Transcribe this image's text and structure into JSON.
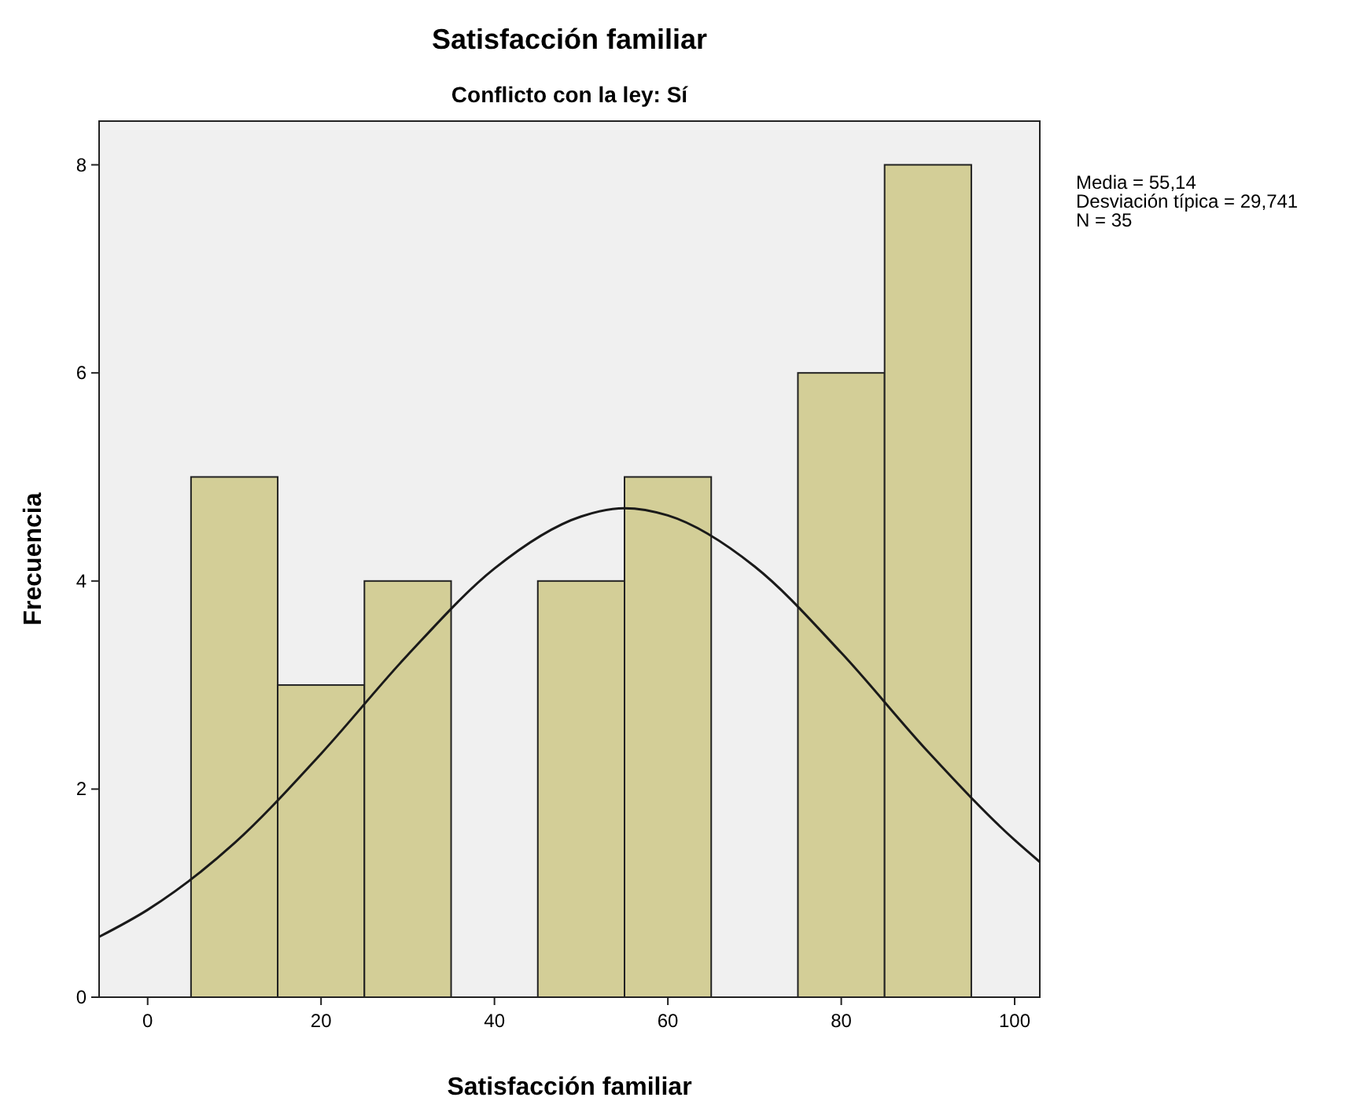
{
  "chart_data": {
    "type": "histogram",
    "title": "Satisfacción familiar",
    "subtitle": "Conflicto con la ley: Sí",
    "xlabel": "Satisfacción familiar",
    "ylabel": "Frecuencia",
    "bins": [
      5,
      15,
      25,
      35,
      45,
      55,
      65,
      75,
      85,
      95
    ],
    "values": [
      5,
      3,
      4,
      0,
      4,
      5,
      0,
      6,
      8
    ],
    "color": "#d3ce97",
    "series": [
      {
        "type": "line",
        "color": "#1a1a1a",
        "x": [
          -5.6,
          0,
          10,
          20,
          30,
          40,
          50,
          55,
          60,
          70,
          80,
          90,
          100,
          102.9
        ],
        "values": [
          0.58,
          0.84,
          1.48,
          2.34,
          3.29,
          4.12,
          4.62,
          4.7,
          4.63,
          4.14,
          3.31,
          2.36,
          1.51,
          1.3
        ]
      }
    ],
    "xlim": [
      -5.6,
      102.9
    ],
    "ylim": [
      0,
      8.42
    ],
    "xticks": [
      0,
      20,
      40,
      60,
      80,
      100
    ],
    "yticks": [
      0,
      2,
      4,
      6,
      8
    ],
    "grid": false,
    "annotations": [
      "Media = 55,14",
      "Desviación típica = 29,741",
      "N = 35"
    ]
  }
}
